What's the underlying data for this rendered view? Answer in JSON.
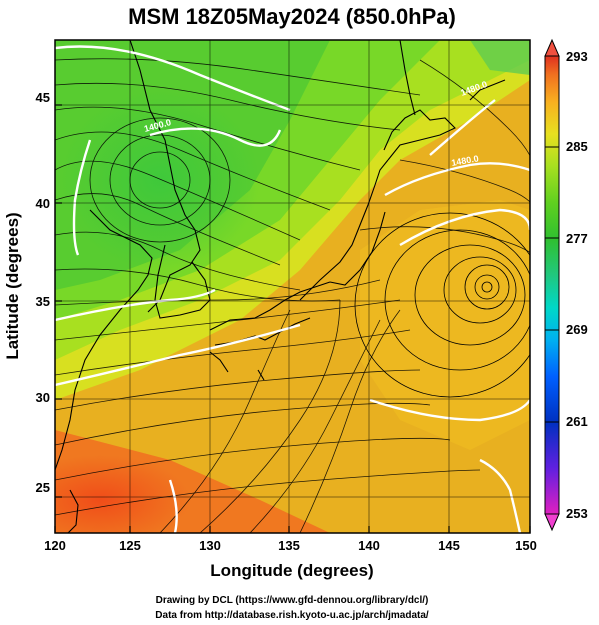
{
  "title": "MSM 18Z05May2024 (850.0hPa)",
  "x_axis": {
    "label": "Longitude (degrees)",
    "ticks": [
      120,
      125,
      130,
      135,
      140,
      145,
      150
    ],
    "range": [
      120,
      150
    ]
  },
  "y_axis": {
    "label": "Latitude  (degrees)",
    "ticks": [
      25,
      30,
      35,
      40,
      45
    ],
    "range": [
      22.4,
      47.6
    ]
  },
  "colorbar": {
    "ticks": [
      293,
      285,
      277,
      269,
      261,
      253
    ],
    "range": [
      253,
      293
    ],
    "colors": [
      "#e020c0",
      "#6020e0",
      "#0030c0",
      "#0060ff",
      "#00b0f0",
      "#00d8c8",
      "#20c880",
      "#30c030",
      "#60d020",
      "#a8e020",
      "#e8e020",
      "#f8b020",
      "#f07020",
      "#e03020"
    ]
  },
  "contour_labels": [
    "1400.0",
    "1480.0",
    "1480.0"
  ],
  "features": {
    "cyclone_center": {
      "lon": 147.5,
      "lat": 35.9
    },
    "cold_low_center": {
      "lon": 127.5,
      "lat": 41.5
    }
  },
  "credits": {
    "line1": "Drawing by DCL (https://www.gfd-dennou.org/library/dcl/)",
    "line2": "Data from http://database.rish.kyoto-u.ac.jp/arch/jmadata/"
  }
}
